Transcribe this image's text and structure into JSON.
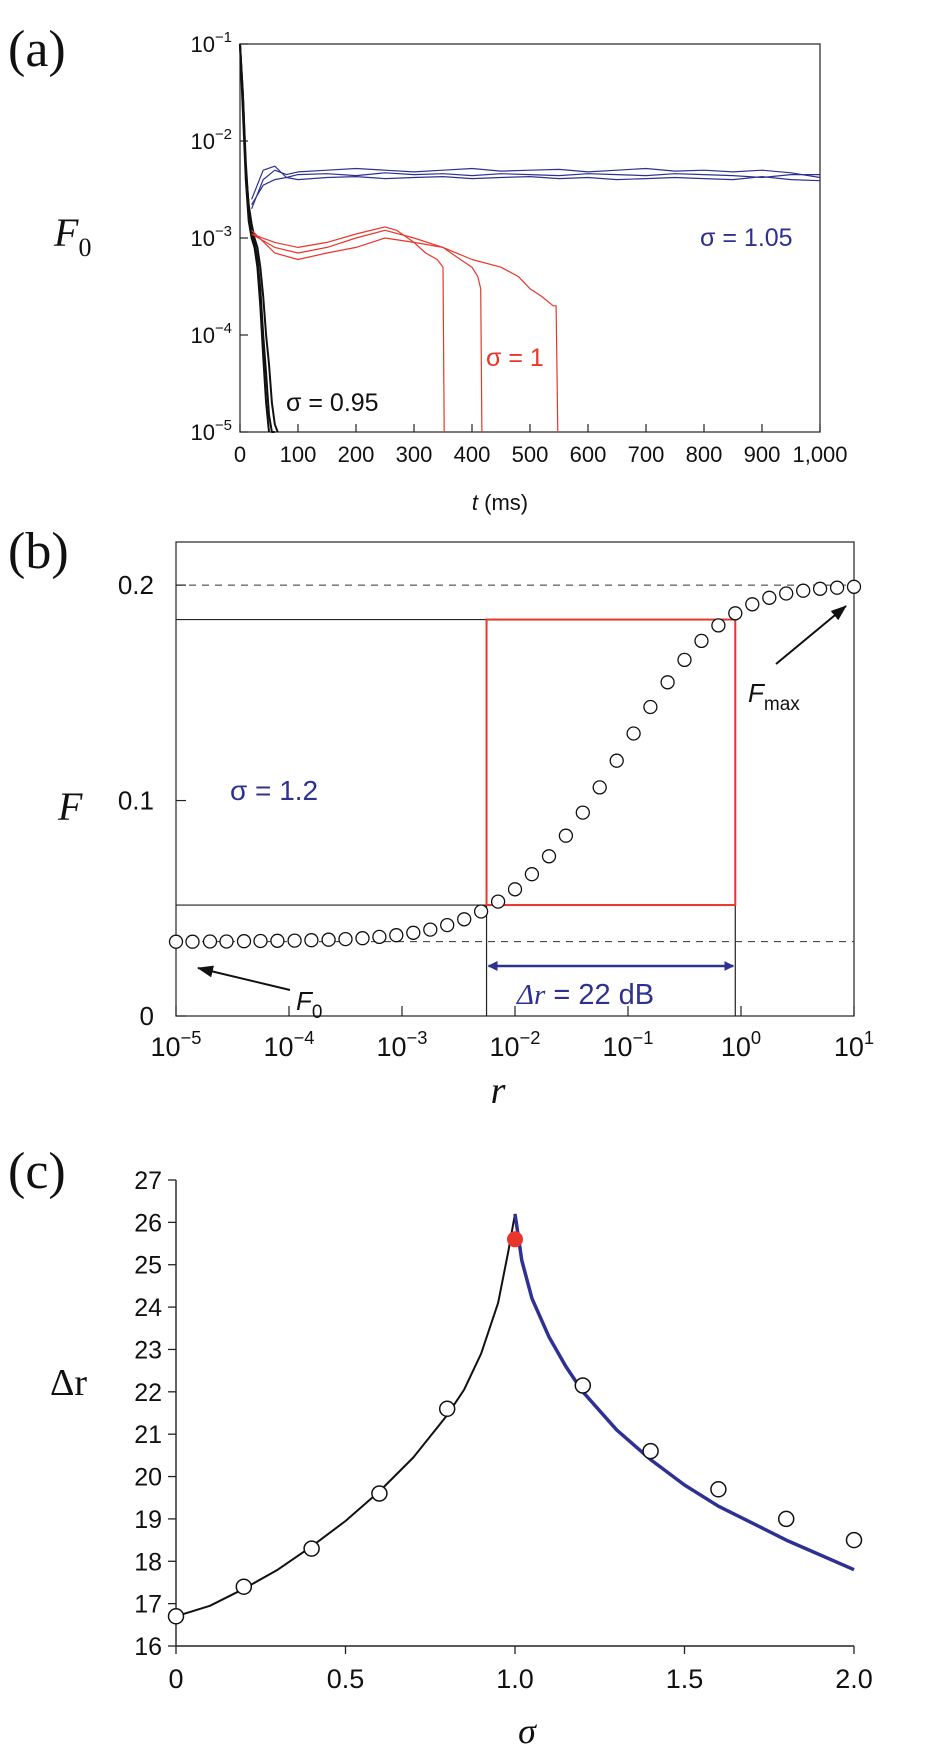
{
  "chart_data": [
    {
      "panel_label": "(a)",
      "type": "line",
      "xlabel": "t (ms)",
      "xlabel_var": "t",
      "xlabel_unit": "(ms)",
      "ylabel": "F0",
      "ylabel_main": "F",
      "ylabel_sub": "0",
      "xlim": [
        0,
        1000
      ],
      "ylim": [
        1e-05,
        0.1
      ],
      "yscale": "log",
      "xticks": [
        0,
        100,
        200,
        300,
        400,
        500,
        600,
        700,
        800,
        900,
        1000
      ],
      "xtick_labels": [
        "0",
        "100",
        "200",
        "300",
        "400",
        "500",
        "600",
        "700",
        "800",
        "900",
        "1,000"
      ],
      "yticks": [
        1e-05,
        0.0001,
        0.001,
        0.01,
        0.1
      ],
      "ytick_base": "10",
      "ytick_exps": [
        "−5",
        "−4",
        "−3",
        "−2",
        "−1"
      ],
      "series": [
        {
          "group": "σ = 0.95",
          "color": "#111111",
          "x": [
            0,
            5,
            10,
            15,
            20,
            25,
            30,
            35,
            40,
            45,
            50,
            55,
            60
          ],
          "y": [
            0.1,
            0.03,
            0.006,
            0.002,
            0.0012,
            0.0009,
            0.0006,
            0.0003,
            0.0001,
            4e-05,
            1.5e-05,
            1e-05,
            1e-05
          ]
        },
        {
          "group": "σ = 0.95",
          "color": "#111111",
          "x": [
            0,
            5,
            10,
            15,
            20,
            25,
            30,
            35,
            40,
            45,
            50
          ],
          "y": [
            0.1,
            0.02,
            0.004,
            0.0015,
            0.001,
            0.0008,
            0.0005,
            0.0002,
            6e-05,
            2e-05,
            1e-05
          ]
        },
        {
          "group": "σ = 0.95",
          "color": "#111111",
          "x": [
            0,
            5,
            10,
            15,
            20,
            25,
            30,
            35,
            40,
            45,
            50,
            55,
            60,
            65
          ],
          "y": [
            0.1,
            0.03,
            0.005,
            0.0022,
            0.0014,
            0.001,
            0.0008,
            0.0005,
            0.00025,
            0.0001,
            5e-05,
            2e-05,
            1.2e-05,
            1e-05
          ]
        },
        {
          "group": "σ = 1",
          "color": "#e8362c",
          "x": [
            20,
            60,
            100,
            150,
            200,
            250,
            270,
            300,
            320,
            340,
            350,
            352
          ],
          "y": [
            0.0011,
            0.0009,
            0.0008,
            0.0009,
            0.0011,
            0.0013,
            0.0012,
            0.0009,
            0.0007,
            0.0006,
            0.0005,
            1e-05
          ]
        },
        {
          "group": "σ = 1",
          "color": "#e8362c",
          "x": [
            20,
            60,
            100,
            150,
            200,
            250,
            300,
            350,
            380,
            400,
            410,
            415,
            417
          ],
          "y": [
            0.0011,
            0.0008,
            0.0007,
            0.0008,
            0.001,
            0.0012,
            0.001,
            0.0008,
            0.0006,
            0.0005,
            0.0004,
            0.0003,
            1e-05
          ]
        },
        {
          "group": "σ = 1",
          "color": "#e8362c",
          "x": [
            20,
            60,
            100,
            150,
            200,
            250,
            300,
            350,
            400,
            450,
            480,
            500,
            520,
            540,
            545,
            548
          ],
          "y": [
            0.0012,
            0.0007,
            0.0006,
            0.0007,
            0.0008,
            0.001,
            0.0009,
            0.0008,
            0.0006,
            0.0005,
            0.0004,
            0.0003,
            0.00025,
            0.0002,
            0.0002,
            1e-05
          ]
        },
        {
          "group": "σ = 1.05",
          "color": "#2e3192",
          "x": [
            20,
            40,
            60,
            80,
            100,
            150,
            200,
            250,
            300,
            350,
            400,
            450,
            500,
            550,
            600,
            650,
            700,
            750,
            800,
            850,
            900,
            950,
            1000
          ],
          "y": [
            0.002,
            0.004,
            0.005,
            0.0045,
            0.0048,
            0.005,
            0.0052,
            0.005,
            0.0048,
            0.005,
            0.0052,
            0.0049,
            0.005,
            0.0051,
            0.0048,
            0.005,
            0.0052,
            0.0049,
            0.005,
            0.0048,
            0.005,
            0.0047,
            0.0042
          ]
        },
        {
          "group": "σ = 1.05",
          "color": "#2e3192",
          "x": [
            20,
            40,
            60,
            80,
            100,
            150,
            200,
            250,
            300,
            350,
            400,
            450,
            500,
            550,
            600,
            650,
            700,
            750,
            800,
            850,
            900,
            950,
            1000
          ],
          "y": [
            0.0025,
            0.005,
            0.0055,
            0.0042,
            0.0045,
            0.0046,
            0.0044,
            0.0047,
            0.0045,
            0.0046,
            0.0044,
            0.0046,
            0.0045,
            0.0044,
            0.0046,
            0.0045,
            0.0044,
            0.0046,
            0.0045,
            0.0044,
            0.0042,
            0.0045,
            0.0045
          ]
        },
        {
          "group": "σ = 1.05",
          "color": "#2e3192",
          "x": [
            20,
            40,
            60,
            80,
            100,
            150,
            200,
            250,
            300,
            350,
            400,
            450,
            500,
            550,
            600,
            650,
            700,
            750,
            800,
            850,
            900,
            950,
            1000
          ],
          "y": [
            0.0022,
            0.0035,
            0.004,
            0.0042,
            0.004,
            0.0042,
            0.0043,
            0.0041,
            0.0042,
            0.0043,
            0.0041,
            0.0042,
            0.0043,
            0.0041,
            0.0042,
            0.004,
            0.0041,
            0.0042,
            0.0041,
            0.004,
            0.0043,
            0.004,
            0.0039
          ]
        }
      ],
      "annotations": [
        {
          "text": "σ = 1.05",
          "color": "#2e3192",
          "at": [
            875,
            0.0009
          ]
        },
        {
          "text": "σ = 1",
          "color": "#e8362c",
          "at": [
            405,
            9e-05
          ]
        },
        {
          "text": "σ = 0.95",
          "color": "#111111",
          "at": [
            160,
            2.5e-05
          ]
        }
      ]
    },
    {
      "panel_label": "(b)",
      "type": "scatter",
      "xlabel": "r",
      "ylabel": "F",
      "xscale": "log",
      "xlim": [
        1e-05,
        10
      ],
      "ylim": [
        0,
        0.22
      ],
      "xticks": [
        1e-05,
        0.0001,
        0.001,
        0.01,
        0.1,
        1,
        10
      ],
      "xtick_base": "10",
      "xtick_exps": [
        "−5",
        "−4",
        "−3",
        "−2",
        "−1",
        "0",
        "1"
      ],
      "yticks": [
        0,
        0.1,
        0.2
      ],
      "ytick_labels": [
        "0",
        "0.1",
        "0.2"
      ],
      "series": [
        {
          "name": "F(r)",
          "marker": "open-circle",
          "x": [
            1e-05,
            1.4e-05,
            2e-05,
            2.8e-05,
            4e-05,
            5.6e-05,
            7.9e-05,
            0.000112,
            0.000158,
            0.000224,
            0.000316,
            0.000447,
            0.000631,
            0.000891,
            0.00126,
            0.00178,
            0.00251,
            0.00355,
            0.00501,
            0.00708,
            0.01,
            0.0141,
            0.02,
            0.0282,
            0.0398,
            0.0562,
            0.0794,
            0.112,
            0.158,
            0.224,
            0.316,
            0.447,
            0.631,
            0.891,
            1.26,
            1.78,
            2.51,
            3.55,
            5.01,
            7.08,
            10
          ],
          "y": [
            0.0345,
            0.0345,
            0.0346,
            0.0346,
            0.0347,
            0.0348,
            0.0349,
            0.035,
            0.0352,
            0.0354,
            0.0357,
            0.0361,
            0.0367,
            0.0375,
            0.0386,
            0.0401,
            0.0422,
            0.0449,
            0.0485,
            0.0531,
            0.0588,
            0.0658,
            0.0741,
            0.0837,
            0.0944,
            0.1061,
            0.1185,
            0.1311,
            0.1434,
            0.1549,
            0.1653,
            0.1741,
            0.1813,
            0.1869,
            0.1911,
            0.1941,
            0.1961,
            0.1974,
            0.1983,
            0.1988,
            0.1992
          ]
        }
      ],
      "reference_lines": {
        "fmax": 0.2,
        "f0": 0.0345,
        "f_low": 0.0515,
        "f_high": 0.184,
        "r_low": 0.0056,
        "r_high": 0.89
      },
      "annotations": {
        "sigma_label": "σ = 1.2",
        "fmax_main": "F",
        "fmax_sub": "max",
        "f0_main": "F",
        "f0_sub": "0",
        "dr_symbol": "Δr",
        "dr_value": "= 22 dB"
      },
      "colors": {
        "box": "#e8362c",
        "arrow": "#2e3192",
        "sigma": "#2e3192"
      }
    },
    {
      "panel_label": "(c)",
      "type": "scatter",
      "xlabel": "σ",
      "ylabel": "Δr",
      "xlim": [
        0,
        2
      ],
      "ylim": [
        16,
        27
      ],
      "xticks": [
        0,
        0.5,
        1.0,
        1.5,
        2.0
      ],
      "xtick_labels": [
        "0",
        "0.5",
        "1.0",
        "1.5",
        "2.0"
      ],
      "yticks": [
        16,
        17,
        18,
        19,
        20,
        21,
        22,
        23,
        24,
        25,
        26,
        27
      ],
      "ytick_labels": [
        "16",
        "17",
        "18",
        "19",
        "20",
        "21",
        "22",
        "23",
        "24",
        "25",
        "26",
        "27"
      ],
      "series": [
        {
          "name": "points",
          "marker": "open-circle",
          "x": [
            0,
            0.2,
            0.4,
            0.6,
            0.8,
            1.2,
            1.4,
            1.6,
            1.8,
            2.0
          ],
          "y": [
            16.7,
            17.4,
            18.3,
            19.6,
            21.6,
            22.15,
            20.6,
            19.7,
            19.0,
            18.5
          ]
        },
        {
          "name": "critical",
          "marker": "filled-circle",
          "color": "#e8362c",
          "x": [
            1.0
          ],
          "y": [
            25.6
          ]
        },
        {
          "name": "fit-left",
          "style": "line",
          "color": "#111111",
          "x": [
            0,
            0.1,
            0.2,
            0.3,
            0.4,
            0.5,
            0.6,
            0.7,
            0.8,
            0.85,
            0.9,
            0.95,
            0.98,
            1.0
          ],
          "y": [
            16.7,
            16.95,
            17.35,
            17.8,
            18.35,
            18.95,
            19.65,
            20.45,
            21.45,
            22.05,
            22.9,
            24.1,
            25.3,
            26.2
          ]
        },
        {
          "name": "fit-right",
          "style": "line",
          "color": "#2e3192",
          "x": [
            1.0,
            1.02,
            1.05,
            1.1,
            1.15,
            1.2,
            1.3,
            1.4,
            1.5,
            1.6,
            1.7,
            1.8,
            1.9,
            2.0
          ],
          "y": [
            26.2,
            25.1,
            24.2,
            23.3,
            22.6,
            22.0,
            21.1,
            20.4,
            19.8,
            19.3,
            18.9,
            18.5,
            18.15,
            17.8
          ]
        }
      ]
    }
  ]
}
